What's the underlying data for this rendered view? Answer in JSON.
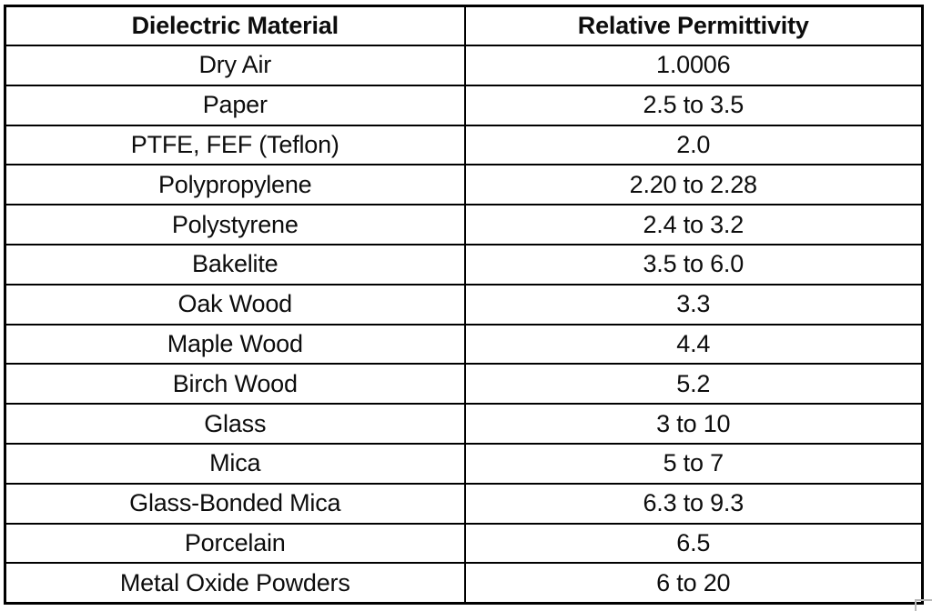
{
  "colors": {
    "background": "#ffffff",
    "border": "#000000",
    "text": "#0d0d0d",
    "corner_artifact": "#b9b9b9"
  },
  "chart_data": {
    "type": "table",
    "columns": [
      "Dielectric Material",
      "Relative Permittivity"
    ],
    "rows": [
      [
        "Dry Air",
        "1.0006"
      ],
      [
        "Paper",
        "2.5 to 3.5"
      ],
      [
        "PTFE, FEF (Teflon)",
        "2.0"
      ],
      [
        "Polypropylene",
        "2.20 to 2.28"
      ],
      [
        "Polystyrene",
        "2.4 to 3.2"
      ],
      [
        "Bakelite",
        "3.5 to 6.0"
      ],
      [
        "Oak Wood",
        "3.3"
      ],
      [
        "Maple Wood",
        "4.4"
      ],
      [
        "Birch Wood",
        "5.2"
      ],
      [
        "Glass",
        "3 to 10"
      ],
      [
        "Mica",
        "5 to 7"
      ],
      [
        "Glass-Bonded Mica",
        "6.3 to 9.3"
      ],
      [
        "Porcelain",
        "6.5"
      ],
      [
        "Metal Oxide Powders",
        "6 to 20"
      ]
    ]
  }
}
